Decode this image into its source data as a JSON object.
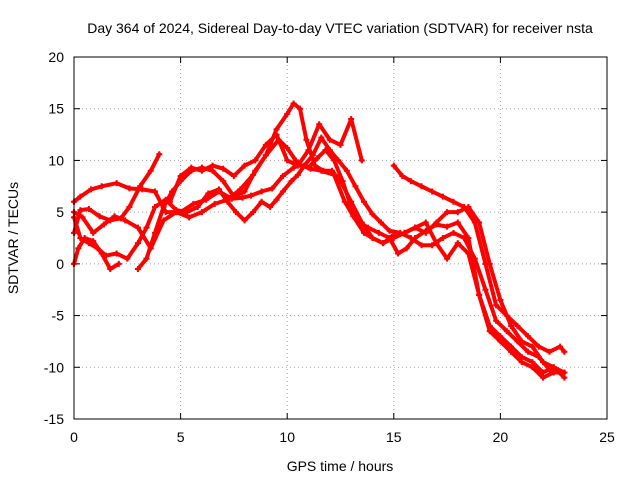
{
  "chart_data": {
    "type": "scatter",
    "title": "Day 364 of 2024, Sidereal Day-to-day VTEC variation (SDTVAR) for receiver nsta",
    "xlabel": "GPS time / hours",
    "ylabel": "SDTVAR / TECUs",
    "xlim": [
      0,
      25
    ],
    "ylim": [
      -15,
      20
    ],
    "xticks": [
      "0",
      "5",
      "10",
      "15",
      "20",
      "25"
    ],
    "yticks": [
      "-15",
      "-10",
      "-5",
      "0",
      "5",
      "10",
      "15",
      "20"
    ],
    "grid": true,
    "marker_color": "#ff0000",
    "series": [
      {
        "name": "track-1",
        "x": [
          0.0,
          0.3,
          0.8,
          1.3,
          2.0,
          2.6,
          3.2,
          3.8,
          4.3,
          5.0,
          5.6,
          6.2,
          6.8,
          7.4,
          7.9,
          8.3,
          8.8,
          9.3,
          9.8,
          10.3,
          10.6,
          11.1,
          11.6,
          12.2,
          12.7,
          13.1,
          13.6,
          14.0,
          14.5,
          15.0
        ],
        "y": [
          6,
          6.5,
          7.2,
          7.5,
          7.8,
          7.3,
          7.2,
          7.0,
          5.0,
          5.0,
          5.8,
          6.2,
          7.0,
          6.3,
          6.4,
          6.6,
          7.0,
          7.3,
          8.5,
          9.3,
          9.6,
          9.2,
          9.0,
          8.6,
          6.0,
          4.6,
          3.0,
          2.5,
          2.0,
          2.8
        ]
      },
      {
        "name": "track-2",
        "x": [
          0.0,
          0.3,
          0.7,
          1.2,
          1.7,
          2.2,
          2.6,
          3.1,
          3.6,
          4.0
        ],
        "y": [
          3.0,
          5.2,
          5.3,
          4.6,
          4.2,
          4.4,
          5.5,
          7.5,
          9.0,
          10.6
        ]
      },
      {
        "name": "track-3",
        "x": [
          0.0,
          0.2,
          0.5,
          0.9,
          1.3,
          1.7,
          2.1
        ],
        "y": [
          0.0,
          1.5,
          2.5,
          2.2,
          1.0,
          -0.5,
          0.0
        ]
      },
      {
        "name": "track-4",
        "x": [
          0.0,
          0.4,
          0.9,
          1.4,
          1.9,
          2.4,
          3.0,
          3.6,
          4.2,
          4.8,
          5.4,
          6.0,
          6.6,
          7.2,
          7.8,
          8.4,
          9.0,
          9.6,
          10.0,
          10.4,
          10.6,
          11.0,
          11.4,
          11.8,
          12.2,
          12.6,
          13.0,
          13.4,
          13.8,
          14.3,
          14.8,
          15.2,
          15.6,
          16.0,
          16.5,
          17.0,
          17.5,
          18.0,
          18.5,
          19.0,
          19.5,
          20.0,
          20.5,
          21.0,
          21.5,
          22.0,
          22.5,
          23.0
        ],
        "y": [
          5.0,
          4.5,
          3.0,
          3.8,
          4.6,
          4.2,
          3.5,
          1.5,
          4.2,
          5.0,
          4.5,
          5.0,
          5.8,
          6.2,
          7.2,
          8.6,
          10.5,
          12.0,
          11.2,
          10.0,
          9.6,
          9.3,
          10.2,
          11.0,
          10.0,
          8.0,
          5.5,
          4.0,
          3.5,
          3.0,
          2.5,
          1.0,
          1.5,
          2.5,
          3.2,
          3.8,
          3.6,
          4.0,
          2.5,
          -3.0,
          -6.0,
          -7.0,
          -8.0,
          -9.0,
          -9.5,
          -10.5,
          -10.0,
          -11.0
        ]
      },
      {
        "name": "track-5",
        "x": [
          0.0,
          0.3,
          0.7,
          1.1,
          1.5,
          2.0,
          2.5,
          3.0,
          3.4,
          3.8,
          4.3,
          4.8,
          5.3,
          5.8,
          6.3,
          6.8,
          7.2,
          7.6,
          8.0,
          8.4,
          8.8,
          9.2,
          9.5,
          9.8,
          10.2,
          10.5,
          10.8,
          11.2,
          11.6,
          12.0,
          12.4,
          12.8,
          13.2,
          13.6,
          14.0,
          14.4,
          14.8,
          15.3,
          15.8,
          16.3,
          16.8,
          17.3,
          17.8,
          18.3,
          18.8,
          19.3,
          19.8,
          20.3,
          20.8,
          21.3,
          21.8,
          22.3,
          22.8
        ],
        "y": [
          4.5,
          2.5,
          2.0,
          1.5,
          0.8,
          1.0,
          0.5,
          2.0,
          3.5,
          5.5,
          6.2,
          5.2,
          5.0,
          5.5,
          6.8,
          7.2,
          6.0,
          5.0,
          4.2,
          5.0,
          6.0,
          5.5,
          6.2,
          7.0,
          8.0,
          8.6,
          9.5,
          10.5,
          12.2,
          11.0,
          10.0,
          9.0,
          7.5,
          6.0,
          4.8,
          4.0,
          3.2,
          3.0,
          2.5,
          1.8,
          1.8,
          2.5,
          3.0,
          2.5,
          0.5,
          -2.5,
          -5.5,
          -6.5,
          -7.5,
          -8.5,
          -9.0,
          -10.2,
          -10.5
        ]
      },
      {
        "name": "track-6",
        "x": [
          3.0,
          3.4,
          3.8,
          4.2,
          4.6,
          5.0,
          5.5,
          6.0,
          6.5,
          7.0,
          7.5,
          8.0,
          8.5,
          9.0,
          9.5,
          10.0,
          10.3,
          10.6,
          10.9,
          11.3,
          11.7,
          12.1,
          12.5,
          13.0,
          13.5,
          14.0,
          14.5,
          15.0,
          15.5,
          16.0,
          16.5,
          17.0,
          17.5,
          18.0,
          18.5,
          19.0,
          19.5,
          20.0,
          20.5,
          21.0,
          21.5,
          22.0,
          22.5,
          23.0
        ],
        "y": [
          -0.5,
          0.5,
          3.0,
          5.5,
          7.0,
          8.0,
          9.0,
          9.3,
          9.0,
          8.0,
          6.5,
          7.0,
          9.0,
          10.5,
          13.0,
          14.5,
          15.5,
          15.0,
          12.0,
          9.5,
          9.0,
          9.0,
          8.0,
          6.0,
          4.0,
          2.5,
          2.0,
          2.5,
          3.0,
          3.5,
          4.0,
          2.0,
          0.5,
          2.0,
          1.0,
          -3.0,
          -6.5,
          -7.5,
          -8.5,
          -9.5,
          -10.0,
          -11.0,
          -10.5,
          -10.5
        ]
      },
      {
        "name": "track-7",
        "x": [
          4.5,
          5.0,
          5.5,
          6.0,
          6.5,
          7.0,
          7.5,
          8.0,
          8.5,
          9.0,
          9.5,
          10.0,
          10.5,
          11.0,
          11.5,
          12.0,
          12.5,
          13.0,
          13.5
        ],
        "y": [
          6.0,
          8.5,
          9.3,
          9.0,
          9.5,
          9.2,
          8.5,
          9.5,
          10.0,
          11.5,
          12.5,
          10.0,
          9.5,
          11.0,
          13.5,
          12.0,
          11.5,
          14.0,
          10.0
        ]
      },
      {
        "name": "track-8",
        "x": [
          15.0,
          15.4,
          15.8,
          16.3,
          16.8,
          17.3,
          17.8,
          18.3,
          18.8,
          19.3,
          19.8,
          20.3,
          20.8,
          21.3,
          21.8,
          22.3,
          22.8,
          23.0
        ],
        "y": [
          9.5,
          8.5,
          8.0,
          7.5,
          7.0,
          6.5,
          6.0,
          5.5,
          4.0,
          0.0,
          -4.0,
          -5.0,
          -6.0,
          -7.0,
          -8.0,
          -8.5,
          -8.0,
          -8.5
        ]
      },
      {
        "name": "track-9",
        "x": [
          15.5,
          16.0,
          16.5,
          17.0,
          17.5,
          18.0,
          18.5,
          19.0,
          19.5,
          20.0,
          20.5,
          21.0,
          21.5,
          22.0,
          22.5,
          23.0
        ],
        "y": [
          3.0,
          3.5,
          3.0,
          4.0,
          5.0,
          5.0,
          5.5,
          4.0,
          0.0,
          -3.5,
          -6.0,
          -7.5,
          -8.0,
          -9.5,
          -10.0,
          -10.5
        ]
      }
    ]
  }
}
